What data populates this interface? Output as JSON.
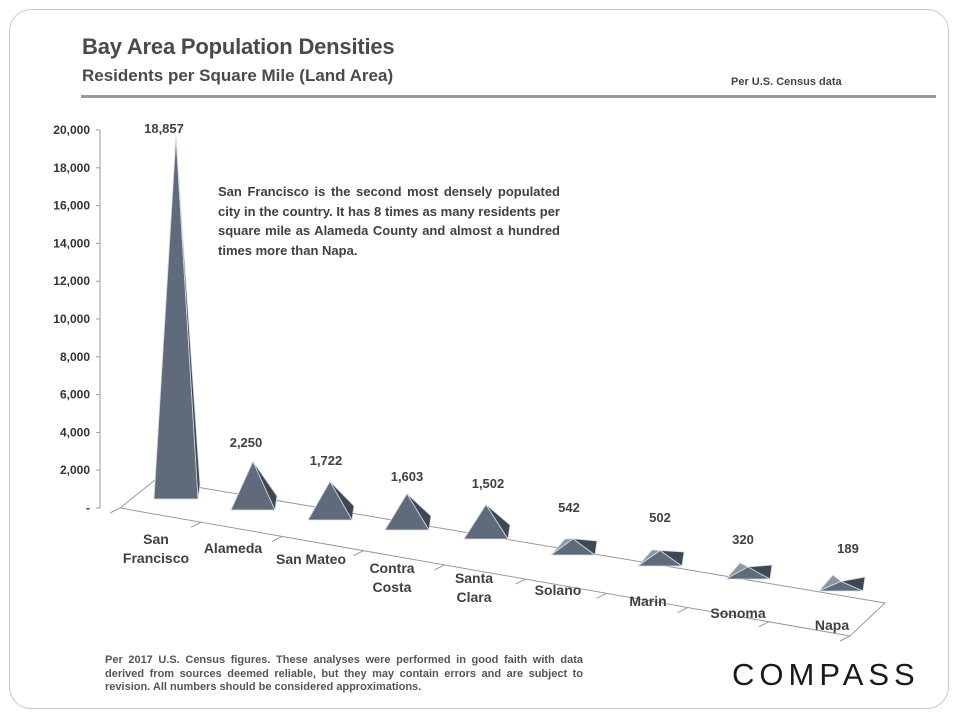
{
  "header": {
    "title": "Bay Area Population Densities",
    "subtitle": "Residents per Square Mile (Land Area)",
    "source_note": "Per U.S. Census data"
  },
  "callout": "San Francisco is the second most densely populated city in the country. It has 8 times as many residents per square mile as Alameda County and almost a hundred times more than Napa.",
  "footnote": "Per 2017 U.S. Census figures. These analyses were performed in good faith with data derived from sources deemed reliable, but they may contain errors and are subject to revision. All numbers should be considered approximations.",
  "logo": "COMPASS",
  "chart_data": {
    "type": "bar",
    "style": "3d-pyramid",
    "title": "Bay Area Population Densities",
    "subtitle": "Residents per Square Mile (Land Area)",
    "categories": [
      [
        "San",
        "Francisco"
      ],
      [
        "Alameda"
      ],
      [
        "San Mateo"
      ],
      [
        "Contra",
        "Costa"
      ],
      [
        "Santa",
        "Clara"
      ],
      [
        "Solano"
      ],
      [
        "Marin"
      ],
      [
        "Sonoma"
      ],
      [
        "Napa"
      ]
    ],
    "values": [
      18857,
      2250,
      1722,
      1603,
      1502,
      542,
      502,
      320,
      189
    ],
    "data_labels": [
      "18,857",
      "2,250",
      "1,722",
      "1,603",
      "1,502",
      "542",
      "502",
      "320",
      "189"
    ],
    "yticks": [
      0,
      2000,
      4000,
      6000,
      8000,
      10000,
      12000,
      14000,
      16000,
      18000,
      20000
    ],
    "ytick_labels": [
      "-",
      "2,000",
      "4,000",
      "6,000",
      "8,000",
      "10,000",
      "12,000",
      "14,000",
      "16,000",
      "18,000",
      "20,000"
    ],
    "ylim": [
      0,
      20000
    ],
    "xlabel": "",
    "ylabel": "",
    "color": "#5f6b7a",
    "color_dark": "#3e4855",
    "color_light": "#8c97a5"
  }
}
